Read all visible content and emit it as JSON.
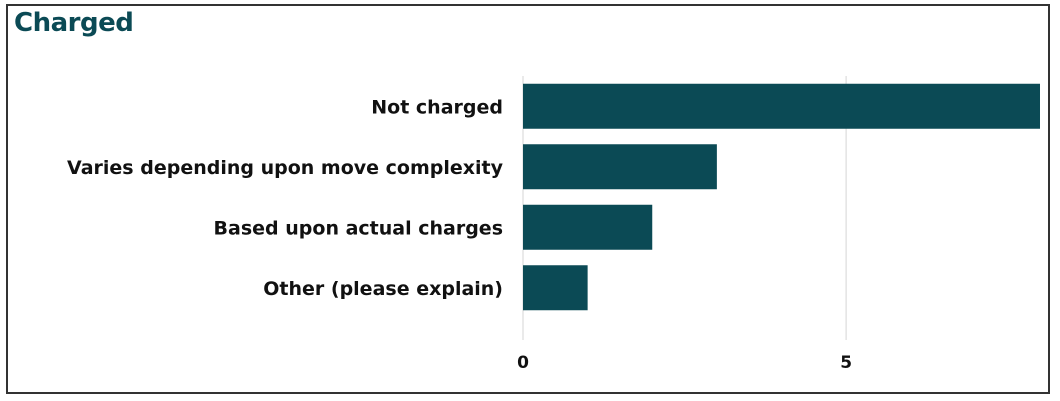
{
  "chart_data": {
    "type": "bar",
    "orientation": "horizontal",
    "title": "Charged",
    "categories": [
      "Not charged",
      "Varies depending upon move complexity",
      "Based upon actual charges",
      "Other (please explain)"
    ],
    "values": [
      8,
      3,
      2,
      1
    ],
    "xlim": [
      0,
      8
    ],
    "x_ticks": [
      0,
      5
    ],
    "grid": "vertical",
    "bar_color": "#0b4a55"
  }
}
